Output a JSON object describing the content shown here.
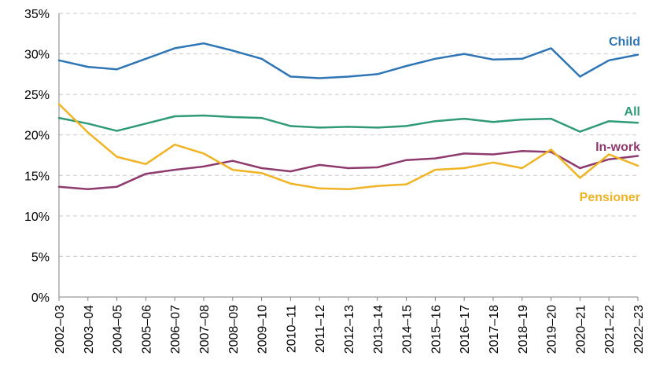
{
  "chart_data": {
    "type": "line",
    "title": "",
    "xlabel": "",
    "ylabel": "",
    "ylim": [
      0,
      35
    ],
    "y_ticks": [
      "0%",
      "5%",
      "10%",
      "15%",
      "20%",
      "25%",
      "30%",
      "35%"
    ],
    "y_tick_values": [
      0,
      5,
      10,
      15,
      20,
      25,
      30,
      35
    ],
    "categories": [
      "2002–03",
      "2003–04",
      "2004–05",
      "2005–06",
      "2006–07",
      "2007–08",
      "2008–09",
      "2009–10",
      "2010–11",
      "2011–12",
      "2012–13",
      "2013–14",
      "2014–15",
      "2015–16",
      "2016–17",
      "2017–18",
      "2018–19",
      "2019–20",
      "2020–21",
      "2021–22",
      "2022–23"
    ],
    "grid": true,
    "legend": "direct labels at right end of lines",
    "series": [
      {
        "name": "Child",
        "color": "#2e75b6",
        "values": [
          29.2,
          28.4,
          28.1,
          29.4,
          30.7,
          31.3,
          30.4,
          29.4,
          27.2,
          27.0,
          27.2,
          27.5,
          28.5,
          29.4,
          30.0,
          29.3,
          29.4,
          30.7,
          27.2,
          29.2,
          29.9
        ]
      },
      {
        "name": "All",
        "color": "#2e9a78",
        "values": [
          22.1,
          21.4,
          20.5,
          21.4,
          22.3,
          22.4,
          22.2,
          22.1,
          21.1,
          20.9,
          21.0,
          20.9,
          21.1,
          21.7,
          22.0,
          21.6,
          21.9,
          22.0,
          20.4,
          21.7,
          21.5
        ]
      },
      {
        "name": "In-work",
        "color": "#8e3a6e",
        "values": [
          13.6,
          13.3,
          13.6,
          15.2,
          15.7,
          16.1,
          16.8,
          15.9,
          15.5,
          16.3,
          15.9,
          16.0,
          16.9,
          17.1,
          17.7,
          17.6,
          18.0,
          17.9,
          15.9,
          17.0,
          17.4
        ]
      },
      {
        "name": "Pensioner",
        "color": "#f0b323",
        "values": [
          23.8,
          20.3,
          17.3,
          16.4,
          18.8,
          17.7,
          15.7,
          15.3,
          14.0,
          13.4,
          13.3,
          13.7,
          13.9,
          15.7,
          15.9,
          16.6,
          15.9,
          18.2,
          14.7,
          17.6,
          16.2
        ]
      }
    ]
  }
}
